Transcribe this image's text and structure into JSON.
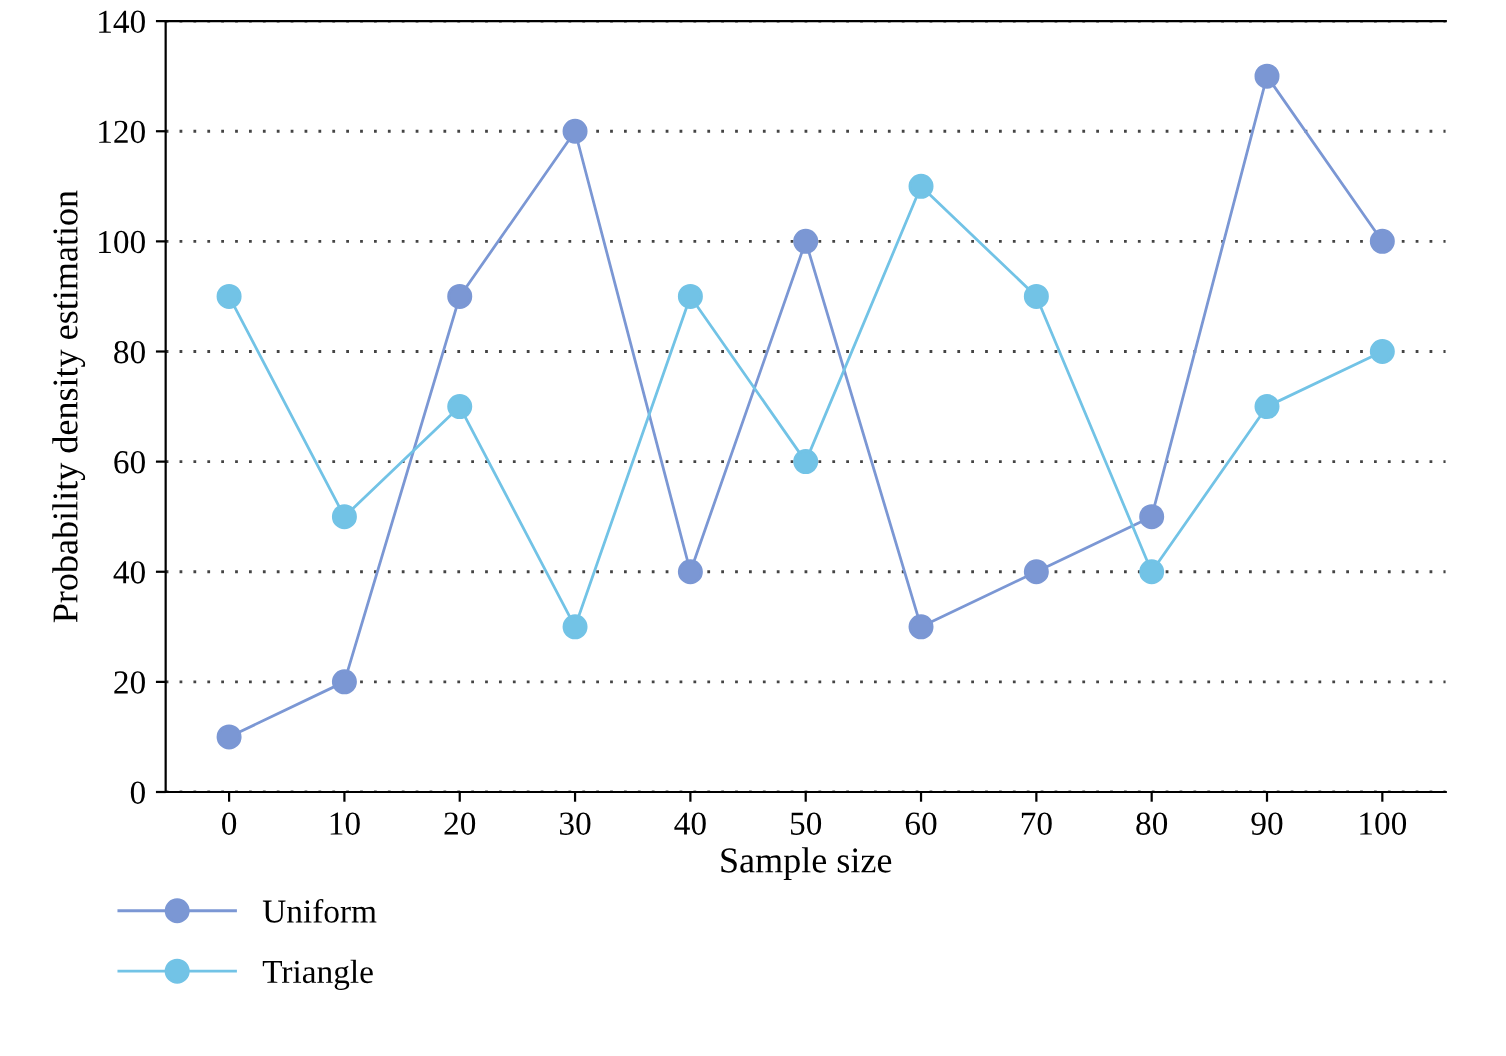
{
  "chart_data": {
    "type": "line",
    "xlabel": "Sample size",
    "ylabel": "Probability density estimation",
    "categories": [
      "0",
      "10",
      "20",
      "30",
      "40",
      "50",
      "60",
      "70",
      "80",
      "90",
      "100"
    ],
    "series": [
      {
        "name": "Uniform",
        "color": "#7b97d4",
        "values": [
          10,
          20,
          90,
          120,
          40,
          100,
          30,
          40,
          50,
          130,
          100
        ]
      },
      {
        "name": "Triangle",
        "color": "#72c3e6",
        "values": [
          90,
          50,
          70,
          30,
          90,
          60,
          110,
          90,
          40,
          70,
          80
        ]
      }
    ],
    "ylim": [
      0,
      140
    ],
    "yticks": [
      0,
      20,
      40,
      60,
      80,
      100,
      120,
      140
    ],
    "grid": "y",
    "legend": "bottom left",
    "marker": "circle",
    "line_style": "solid"
  }
}
